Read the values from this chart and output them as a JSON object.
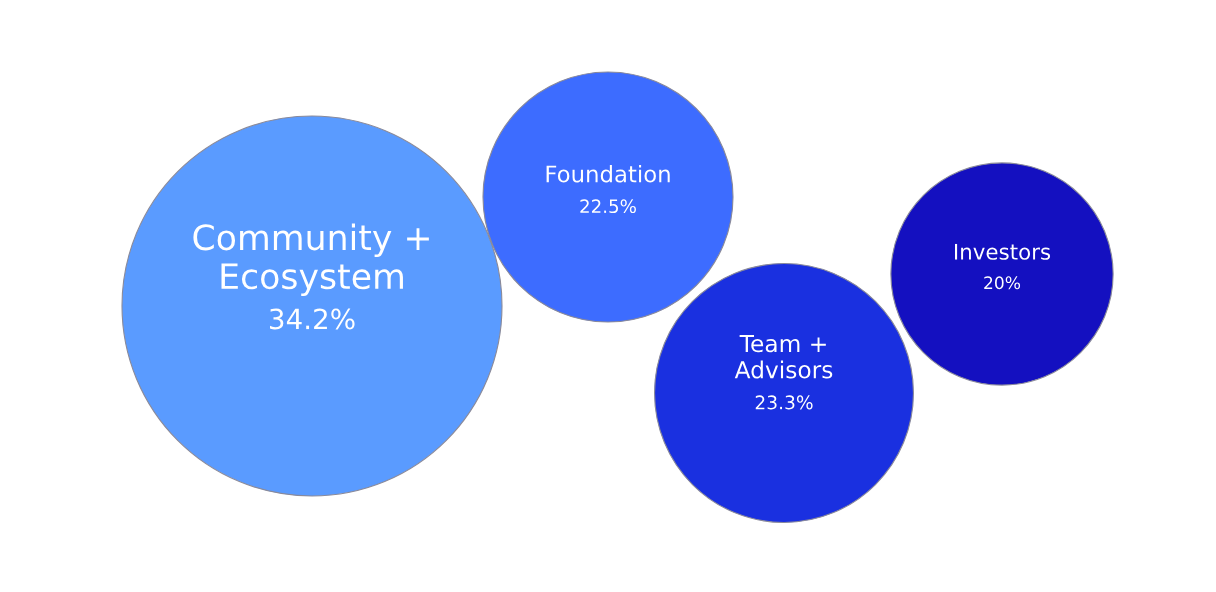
{
  "chart_data": {
    "type": "other",
    "categories": [
      "Community +\nEcosystem",
      "Foundation",
      "Team +\nAdvisors",
      "Investors"
    ],
    "values": [
      34.2,
      22.5,
      23.3,
      20
    ],
    "value_labels": [
      "34.2%",
      "22.5%",
      "23.3%",
      "20%"
    ],
    "colors": [
      "#5a9bff",
      "#3d6cff",
      "#1a30e0",
      "#1410c0"
    ]
  }
}
